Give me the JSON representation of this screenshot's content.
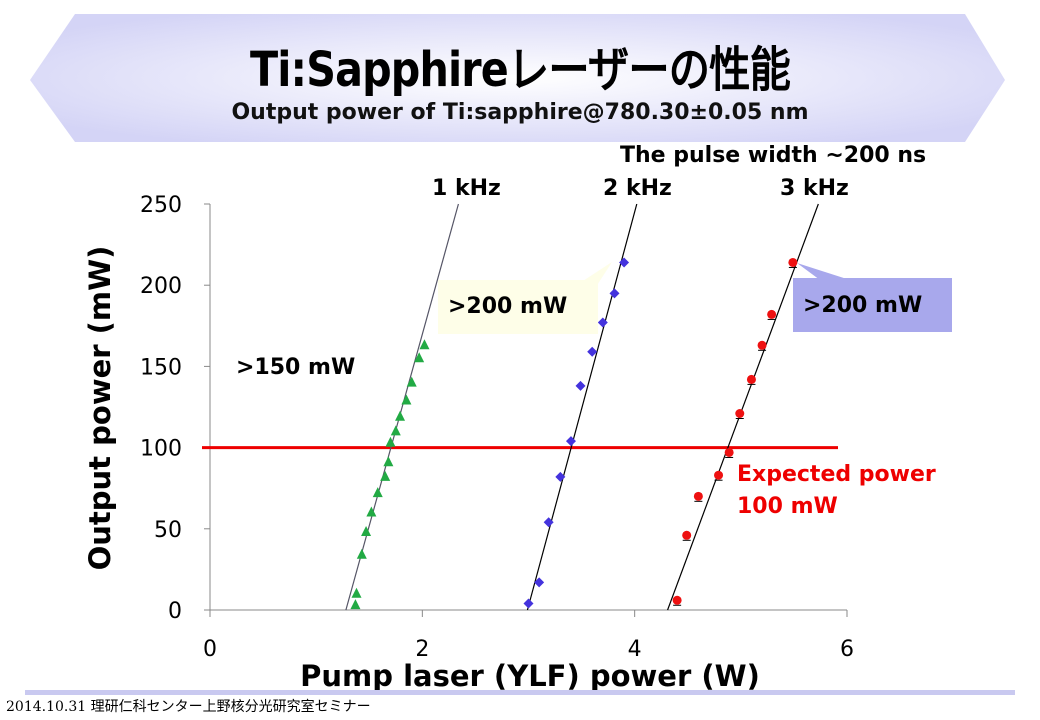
{
  "slide": {
    "title": "Ti:Sapphireレーザーの性能",
    "subtitle": "Output power of Ti:sapphire@780.30±0.05 nm",
    "pulse_note": "The pulse width ~200 ns",
    "footer": "2014.10.31 理研仁科センター上野核分光研究室セミナー",
    "banner_color": "#d9d9f7"
  },
  "chart_data": {
    "type": "scatter",
    "xlabel": "Pump laser (YLF) power (W)",
    "ylabel": "Output power  (mW)",
    "xlim": [
      0,
      6
    ],
    "ylim": [
      0,
      250
    ],
    "xticks": [
      "0",
      "2",
      "4",
      "6"
    ],
    "yticks": [
      "0",
      "50",
      "100",
      "150",
      "200",
      "250"
    ],
    "grid": false,
    "series": [
      {
        "name": "1 kHz",
        "marker": "triangle",
        "color": "#22aa44",
        "x": [
          1.37,
          1.38,
          1.43,
          1.47,
          1.52,
          1.58,
          1.65,
          1.68,
          1.7,
          1.75,
          1.79,
          1.85,
          1.9,
          1.97,
          2.02
        ],
        "y": [
          3,
          10,
          34,
          48,
          60,
          72,
          82,
          91,
          103,
          110,
          119,
          129,
          140,
          155,
          163
        ],
        "fit": [
          [
            1.28,
            0
          ],
          [
            2.34,
            250
          ]
        ]
      },
      {
        "name": "2 kHz",
        "marker": "diamond",
        "color": "#4433dd",
        "x": [
          3.0,
          3.1,
          3.19,
          3.3,
          3.4,
          3.49,
          3.6,
          3.7,
          3.81,
          3.9
        ],
        "y": [
          4,
          17,
          54,
          82,
          104,
          138,
          159,
          177,
          195,
          214
        ],
        "fit": [
          [
            2.99,
            0
          ],
          [
            4.02,
            250
          ]
        ]
      },
      {
        "name": "3 kHz",
        "marker": "circle",
        "color": "#ee1111",
        "x": [
          4.4,
          4.49,
          4.6,
          4.79,
          4.89,
          4.99,
          5.1,
          5.2,
          5.29,
          5.49
        ],
        "y": [
          6,
          46,
          70,
          83,
          97,
          121,
          142,
          163,
          182,
          214
        ],
        "fit": [
          [
            4.31,
            0
          ],
          [
            5.73,
            250
          ]
        ]
      }
    ],
    "reference_line": {
      "y": 100,
      "color": "#ee0000",
      "label_1": "Expected power",
      "label_2": "100 mW"
    },
    "annotations": {
      "a1": ">150 mW",
      "a2": ">200 mW",
      "a3": ">200 mW"
    }
  }
}
